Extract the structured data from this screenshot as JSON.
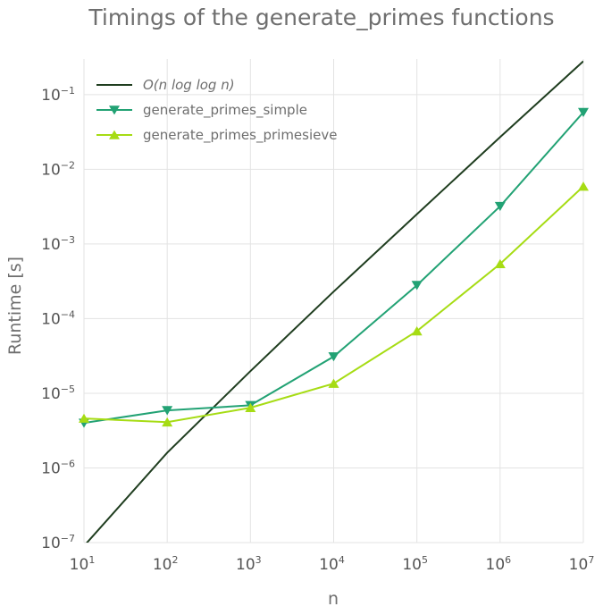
{
  "chart_data": {
    "type": "line",
    "title": "Timings of the generate_primes functions",
    "xlabel": "n",
    "ylabel": "Runtime [s]",
    "xscale": "log",
    "yscale": "log",
    "xlim": [
      10,
      10000000
    ],
    "ylim": [
      1e-07,
      0.3
    ],
    "grid": true,
    "legend_position": "top-left",
    "x_ticks": [
      {
        "base": "10",
        "exp": "1",
        "value": 10
      },
      {
        "base": "10",
        "exp": "2",
        "value": 100
      },
      {
        "base": "10",
        "exp": "3",
        "value": 1000
      },
      {
        "base": "10",
        "exp": "4",
        "value": 10000
      },
      {
        "base": "10",
        "exp": "5",
        "value": 100000
      },
      {
        "base": "10",
        "exp": "6",
        "value": 1000000
      },
      {
        "base": "10",
        "exp": "7",
        "value": 10000000
      }
    ],
    "y_ticks": [
      {
        "base": "10",
        "exp": "−7",
        "value": 1e-07
      },
      {
        "base": "10",
        "exp": "−6",
        "value": 1e-06
      },
      {
        "base": "10",
        "exp": "−5",
        "value": 1e-05
      },
      {
        "base": "10",
        "exp": "−4",
        "value": 0.0001
      },
      {
        "base": "10",
        "exp": "−3",
        "value": 0.001
      },
      {
        "base": "10",
        "exp": "−2",
        "value": 0.01
      },
      {
        "base": "10",
        "exp": "−1",
        "value": 0.1
      }
    ],
    "series": [
      {
        "name": "O(n log log n)",
        "legend_parts": {
          "pre": "O(",
          "mid": "n log log n",
          "post": ")"
        },
        "color": "#1f3d1f",
        "marker": "none",
        "x": [
          10,
          100,
          1000,
          10000,
          100000,
          1000000,
          10000000
        ],
        "values": [
          9e-08,
          1.6e-06,
          1.98e-05,
          0.00023,
          0.0025,
          0.027,
          0.28
        ]
      },
      {
        "name": "generate_primes_simple",
        "color": "#22a274",
        "marker": "triangle-down",
        "x": [
          10,
          100,
          1000,
          10000,
          100000,
          1000000,
          10000000
        ],
        "values": [
          4e-06,
          5.9e-06,
          6.9e-06,
          3.1e-05,
          0.00028,
          0.0032,
          0.058
        ]
      },
      {
        "name": "generate_primes_primesieve",
        "color": "#a6dc14",
        "marker": "triangle-up",
        "x": [
          10,
          100,
          1000,
          10000,
          100000,
          1000000,
          10000000
        ],
        "values": [
          4.6e-06,
          4.1e-06,
          6.4e-06,
          1.35e-05,
          6.8e-05,
          0.00054,
          0.0059
        ]
      }
    ]
  }
}
